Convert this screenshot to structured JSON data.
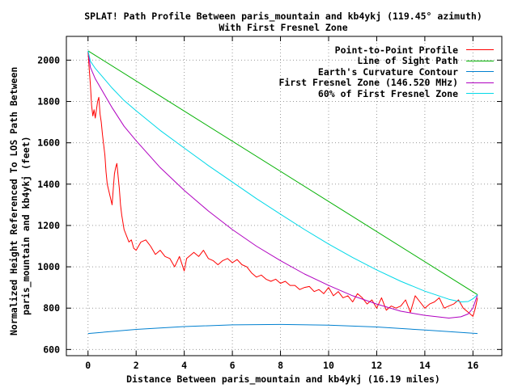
{
  "chart_data": {
    "type": "line",
    "title": "SPLAT! Path Profile Between paris_mountain and kb4ykj (119.45° azimuth)",
    "subtitle": "With First Fresnel Zone",
    "xlabel": "Distance Between paris_mountain and kb4ykj (16.19 miles)",
    "ylabel": [
      "Normalized Height Referenced To LOS Path Between",
      "paris_mountain and kb4ykj (feet)"
    ],
    "xlim": [
      -0.9,
      17.2
    ],
    "ylim": [
      570,
      2115
    ],
    "xticks": [
      0,
      2,
      4,
      6,
      8,
      10,
      12,
      14,
      16
    ],
    "yticks": [
      600,
      800,
      1000,
      1200,
      1400,
      1600,
      1800,
      2000
    ],
    "grid": true,
    "legend_position": "top-right",
    "series": [
      {
        "name": "Point-to-Point Profile",
        "color": "#ff0000",
        "x": [
          0,
          0.05,
          0.1,
          0.15,
          0.2,
          0.25,
          0.3,
          0.4,
          0.45,
          0.5,
          0.55,
          0.6,
          0.7,
          0.75,
          0.8,
          0.9,
          1.0,
          1.05,
          1.1,
          1.15,
          1.2,
          1.25,
          1.3,
          1.35,
          1.4,
          1.5,
          1.6,
          1.7,
          1.8,
          1.9,
          2.0,
          2.2,
          2.4,
          2.6,
          2.8,
          3.0,
          3.2,
          3.4,
          3.6,
          3.8,
          4.0,
          4.1,
          4.2,
          4.4,
          4.6,
          4.8,
          5.0,
          5.2,
          5.4,
          5.6,
          5.8,
          6.0,
          6.2,
          6.4,
          6.6,
          6.8,
          7.0,
          7.2,
          7.4,
          7.6,
          7.8,
          8.0,
          8.2,
          8.4,
          8.6,
          8.8,
          9.0,
          9.2,
          9.4,
          9.6,
          9.8,
          10.0,
          10.2,
          10.4,
          10.6,
          10.8,
          11.0,
          11.2,
          11.4,
          11.6,
          11.8,
          12.0,
          12.2,
          12.4,
          12.6,
          12.8,
          13.0,
          13.2,
          13.4,
          13.6,
          13.8,
          14.0,
          14.2,
          14.4,
          14.6,
          14.8,
          15.0,
          15.2,
          15.4,
          15.6,
          15.8,
          16.0,
          16.1,
          16.19
        ],
        "y": [
          2040,
          1960,
          1880,
          1780,
          1730,
          1760,
          1720,
          1800,
          1820,
          1740,
          1700,
          1640,
          1540,
          1460,
          1400,
          1350,
          1300,
          1380,
          1450,
          1480,
          1500,
          1440,
          1380,
          1300,
          1250,
          1180,
          1150,
          1120,
          1130,
          1090,
          1080,
          1120,
          1130,
          1100,
          1060,
          1080,
          1050,
          1040,
          1000,
          1050,
          980,
          1040,
          1050,
          1070,
          1050,
          1080,
          1040,
          1030,
          1010,
          1030,
          1040,
          1020,
          1035,
          1010,
          1000,
          970,
          950,
          960,
          940,
          930,
          940,
          920,
          930,
          910,
          910,
          890,
          900,
          905,
          880,
          890,
          870,
          900,
          860,
          880,
          850,
          860,
          830,
          870,
          850,
          820,
          840,
          800,
          850,
          790,
          810,
          800,
          810,
          840,
          780,
          860,
          830,
          800,
          820,
          830,
          850,
          800,
          810,
          820,
          840,
          800,
          780,
          760,
          800,
          850
        ]
      },
      {
        "name": "Line of Sight Path",
        "color": "#00b000",
        "x": [
          0,
          16.19
        ],
        "y": [
          2045,
          865
        ]
      },
      {
        "name": "Earth's Curvature Contour",
        "color": "#0080d0",
        "x": [
          0,
          2,
          4,
          6,
          8,
          10,
          12,
          14,
          16.19
        ],
        "y": [
          677,
          697,
          711,
          719,
          721,
          718,
          709,
          694,
          677
        ]
      },
      {
        "name": "First Fresnel Zone (146.520 MHz)",
        "color": "#b000c0",
        "x": [
          0,
          0.1,
          0.3,
          0.6,
          1,
          1.5,
          2,
          3,
          4,
          5,
          6,
          7,
          8,
          9,
          10,
          11,
          12,
          13,
          14,
          15,
          15.5,
          15.8,
          16.0,
          16.19
        ],
        "y": [
          2045,
          1965,
          1910,
          1850,
          1770,
          1680,
          1610,
          1480,
          1370,
          1270,
          1180,
          1100,
          1030,
          965,
          910,
          860,
          820,
          785,
          765,
          752,
          758,
          772,
          800,
          865
        ]
      },
      {
        "name": "60% of First Fresnel Zone",
        "color": "#00d8e8",
        "x": [
          0,
          0.1,
          0.3,
          0.6,
          1,
          1.5,
          2,
          3,
          4,
          5,
          6,
          7,
          8,
          9,
          10,
          11,
          12,
          13,
          14,
          15,
          15.5,
          15.8,
          16.0,
          16.19
        ],
        "y": [
          2045,
          1995,
          1960,
          1920,
          1865,
          1805,
          1755,
          1660,
          1575,
          1490,
          1410,
          1330,
          1255,
          1180,
          1110,
          1045,
          985,
          930,
          882,
          843,
          830,
          832,
          845,
          865
        ]
      }
    ]
  }
}
